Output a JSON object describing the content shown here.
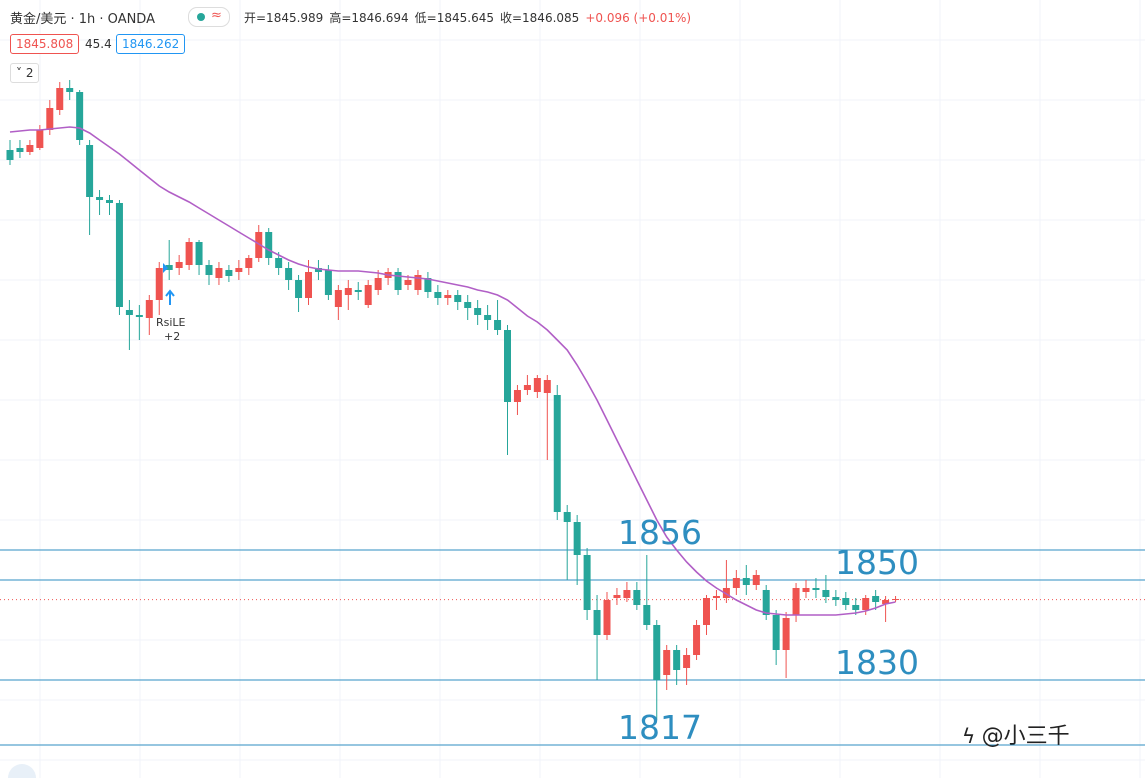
{
  "chart_data": {
    "type": "candlestick",
    "symbol": "黄金/美元 · 1h · OANDA",
    "ohlc_text": [
      "开=1845.989",
      "高=1846.694",
      "低=1845.645",
      "收=1846.085",
      "+0.096 (+0.01%)"
    ],
    "bid": "1845.808",
    "spread": "45.4",
    "ask": "1846.262",
    "indicator_count": "2",
    "signal": {
      "name": "RsiLE",
      "qty": "+2"
    },
    "watermark": "@小三千",
    "ylim": [
      1810.4,
      1966
    ],
    "up_color": "#ef5350",
    "down_color": "#26a69a",
    "open": [
      1936,
      1936.4,
      1935.6,
      1936.4,
      1940,
      1944,
      1948.4,
      1947.6,
      1937,
      1926.6,
      1926,
      1925.4,
      1904,
      1903,
      1902.4,
      1906,
      1913,
      1912.4,
      1913,
      1917.6,
      1913,
      1910.4,
      1912,
      1911.6,
      1912.4,
      1914.4,
      1919.6,
      1914.4,
      1912.4,
      1910,
      1906.4,
      1912.4,
      1912,
      1904.6,
      1907,
      1908,
      1905,
      1908,
      1910.4,
      1911.6,
      1909,
      1908,
      1910.4,
      1907.6,
      1906.4,
      1907,
      1905.6,
      1904.4,
      1903,
      1902,
      1900,
      1885.6,
      1888,
      1887.6,
      1887.4,
      1887,
      1863.6,
      1861.6,
      1855,
      1844,
      1839,
      1846.4,
      1846.4,
      1848,
      1845,
      1841,
      1831,
      1836,
      1832.4,
      1835,
      1841,
      1846.4,
      1846.4,
      1848.4,
      1850.4,
      1849,
      1848,
      1843,
      1836,
      1843,
      1847.6,
      1848.4,
      1848,
      1846.6,
      1846.4,
      1845,
      1844,
      1846.8,
      1845.2,
      1846
    ],
    "high": [
      1938,
      1938,
      1938,
      1941,
      1946,
      1949.6,
      1950,
      1948,
      1938,
      1928,
      1927,
      1926,
      1906,
      1905,
      1907,
      1913.6,
      1918,
      1915,
      1918.4,
      1918,
      1914,
      1913.6,
      1913,
      1914,
      1915,
      1921,
      1920.4,
      1915.6,
      1913.6,
      1911,
      1914,
      1914,
      1913,
      1909,
      1910,
      1909.6,
      1910,
      1912,
      1912.4,
      1912.4,
      1911,
      1912,
      1911.6,
      1909,
      1908,
      1908,
      1907,
      1906,
      1905,
      1906,
      1901,
      1889,
      1891,
      1891,
      1891,
      1889,
      1865,
      1863,
      1856.4,
      1847,
      1847.6,
      1848.4,
      1849.6,
      1849.6,
      1855,
      1842,
      1837,
      1837,
      1836.4,
      1842,
      1847,
      1848,
      1854,
      1852,
      1853,
      1852,
      1849,
      1844,
      1843.6,
      1849.4,
      1850,
      1850.4,
      1851,
      1848,
      1847.6,
      1846.4,
      1847,
      1848,
      1846.8,
      1846.8
    ],
    "low": [
      1933,
      1934.4,
      1935,
      1936,
      1939,
      1943,
      1946,
      1937,
      1919,
      1923,
      1923,
      1903,
      1896,
      1898,
      1899,
      1903,
      1910,
      1911,
      1912,
      1911,
      1909,
      1909,
      1909.6,
      1910,
      1911,
      1913.6,
      1913,
      1911,
      1908,
      1903.6,
      1905,
      1910,
      1906,
      1902,
      1904,
      1906,
      1904.4,
      1907,
      1909,
      1907,
      1908,
      1907,
      1906.4,
      1905,
      1905,
      1904,
      1902,
      1901,
      1900,
      1899,
      1875,
      1883,
      1887,
      1886.4,
      1874,
      1862,
      1850,
      1849,
      1842,
      1830,
      1838,
      1845,
      1845.6,
      1844,
      1840,
      1822,
      1828,
      1829,
      1829,
      1834,
      1839,
      1844,
      1845.4,
      1847,
      1847,
      1848,
      1842,
      1833,
      1830.4,
      1841.6,
      1846.4,
      1846.4,
      1845.4,
      1844.8,
      1844,
      1843,
      1843,
      1844,
      1841.6,
      1845.6
    ],
    "close": [
      1934,
      1935.6,
      1937,
      1940,
      1944.4,
      1948.4,
      1947.6,
      1938,
      1926.6,
      1926,
      1925.4,
      1904.6,
      1903,
      1902.6,
      1906,
      1912.4,
      1912,
      1913.6,
      1917.6,
      1913,
      1911,
      1912.4,
      1910.8,
      1912.4,
      1914.4,
      1919.6,
      1914.4,
      1912.4,
      1910,
      1906.4,
      1911.6,
      1911.6,
      1907,
      1908,
      1908.4,
      1907.6,
      1909,
      1910.4,
      1911.6,
      1908,
      1910,
      1911,
      1907.6,
      1906.4,
      1907,
      1905.6,
      1904.4,
      1903,
      1902,
      1900,
      1885.6,
      1888,
      1889,
      1890.4,
      1890,
      1863.6,
      1861.6,
      1855,
      1844,
      1839,
      1846,
      1847,
      1848,
      1845,
      1841,
      1830,
      1836,
      1832,
      1835,
      1841,
      1846.4,
      1846.8,
      1848.4,
      1850.4,
      1849,
      1851,
      1843,
      1836,
      1842.4,
      1848.4,
      1848.4,
      1848,
      1846.6,
      1846,
      1845,
      1844,
      1846.4,
      1845.6,
      1846,
      1846.2
    ],
    "ma": {
      "color": "#b15fc6",
      "values": [
        1939.6,
        1939.8,
        1940,
        1940,
        1940.2,
        1940.4,
        1940.6,
        1940.4,
        1939.4,
        1938,
        1936.6,
        1935.2,
        1933.6,
        1932,
        1930.4,
        1928.8,
        1927.6,
        1926.6,
        1925.6,
        1924.4,
        1923.2,
        1922,
        1920.8,
        1919.6,
        1918.4,
        1917.2,
        1916,
        1915,
        1914,
        1913.2,
        1912.6,
        1912.2,
        1912,
        1911.8,
        1911.8,
        1911.8,
        1911.6,
        1911.4,
        1911,
        1910.8,
        1910.6,
        1910.4,
        1910.2,
        1909.8,
        1909.4,
        1909,
        1908.6,
        1908,
        1907.6,
        1907,
        1906,
        1904.4,
        1902.8,
        1901.6,
        1900,
        1898,
        1896,
        1893,
        1889.6,
        1886,
        1882,
        1878,
        1874,
        1870,
        1866,
        1862,
        1858.6,
        1856,
        1853.6,
        1851.6,
        1849.8,
        1848.4,
        1847.2,
        1846,
        1845,
        1844,
        1843.4,
        1843.2,
        1843,
        1843,
        1843,
        1843,
        1843,
        1843,
        1843.2,
        1843.4,
        1843.8,
        1844.4,
        1845.2,
        1845.6
      ]
    },
    "levels": {
      "color": "#2e8ec0",
      "values": [
        1856,
        1850,
        1830,
        1817
      ],
      "labels": [
        "1856",
        "1850",
        "1830",
        "1817"
      ]
    },
    "last_price": 1846.085
  }
}
